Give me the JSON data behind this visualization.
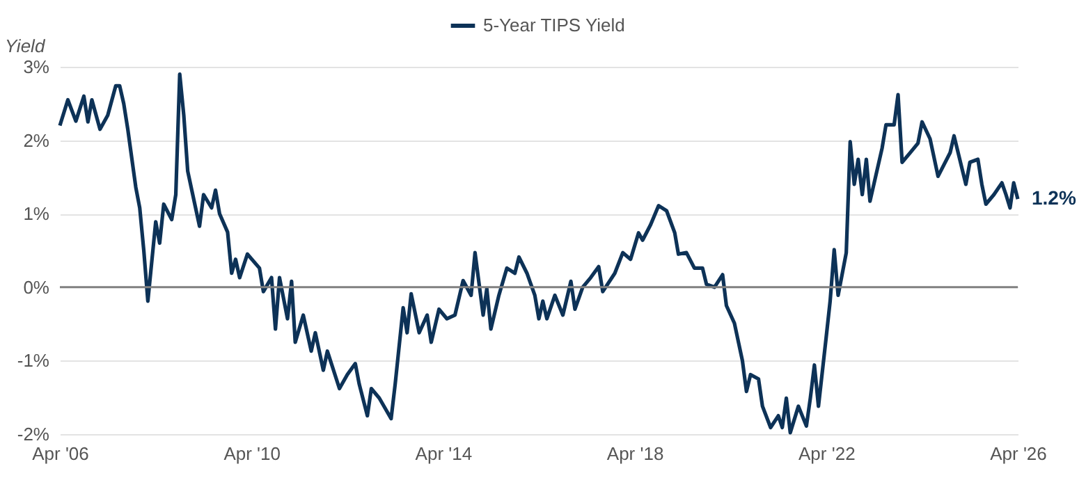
{
  "chart_data": {
    "type": "line",
    "ylabel": "Yield",
    "legend": "top",
    "grid": "y",
    "xlim": [
      "2006-04",
      "2026-04"
    ],
    "xticks": [
      {
        "value": "2006-04",
        "label": "Apr '06"
      },
      {
        "value": "2010-04",
        "label": "Apr '10"
      },
      {
        "value": "2014-04",
        "label": "Apr '14"
      },
      {
        "value": "2018-04",
        "label": "Apr '18"
      },
      {
        "value": "2022-04",
        "label": "Apr '22"
      },
      {
        "value": "2026-04",
        "label": "Apr '26"
      }
    ],
    "ylim": [
      -2,
      3
    ],
    "yticks": [
      {
        "value": -2,
        "label": "-2%"
      },
      {
        "value": -1,
        "label": "-1%"
      },
      {
        "value": 0,
        "label": "0%"
      },
      {
        "value": 1,
        "label": "1%"
      },
      {
        "value": 2,
        "label": "2%"
      },
      {
        "value": 3,
        "label": "3%"
      }
    ],
    "ref_lines": [
      {
        "axis": "y",
        "value": 0,
        "color": "#808080"
      }
    ],
    "annotations": [
      {
        "text": "1.2%",
        "x": "2026-04",
        "y": 1.2
      }
    ],
    "series": [
      {
        "name": "5-Year TIPS Yield",
        "color": "#0d3257",
        "x": [
          "2006-04",
          "2006-06",
          "2006-08",
          "2006-10",
          "2006-11",
          "2006-12",
          "2007-02",
          "2007-04",
          "2007-06",
          "2007-07",
          "2007-08",
          "2007-09",
          "2007-11",
          "2007-12",
          "2008-01",
          "2008-02",
          "2008-04",
          "2008-05",
          "2008-06",
          "2008-08",
          "2008-09",
          "2008-10",
          "2008-11",
          "2008-12",
          "2009-01",
          "2009-03",
          "2009-04",
          "2009-06",
          "2009-07",
          "2009-08",
          "2009-10",
          "2009-11",
          "2009-12",
          "2010-01",
          "2010-03",
          "2010-06",
          "2010-07",
          "2010-09",
          "2010-10",
          "2010-11",
          "2011-01",
          "2011-02",
          "2011-03",
          "2011-05",
          "2011-07",
          "2011-08",
          "2011-10",
          "2011-11",
          "2012-02",
          "2012-04",
          "2012-06",
          "2012-07",
          "2012-09",
          "2012-10",
          "2012-12",
          "2013-03",
          "2013-04",
          "2013-06",
          "2013-07",
          "2013-08",
          "2013-10",
          "2013-12",
          "2014-01",
          "2014-03",
          "2014-05",
          "2014-07",
          "2014-09",
          "2014-11",
          "2014-12",
          "2015-02",
          "2015-03",
          "2015-04",
          "2015-06",
          "2015-08",
          "2015-10",
          "2015-11",
          "2016-01",
          "2016-03",
          "2016-04",
          "2016-05",
          "2016-06",
          "2016-08",
          "2016-10",
          "2016-12",
          "2017-01",
          "2017-03",
          "2017-05",
          "2017-07",
          "2017-08",
          "2017-11",
          "2018-01",
          "2018-03",
          "2018-05",
          "2018-06",
          "2018-08",
          "2018-10",
          "2018-12",
          "2019-02",
          "2019-03",
          "2019-05",
          "2019-07",
          "2019-09",
          "2019-10",
          "2019-12",
          "2020-02",
          "2020-03",
          "2020-05",
          "2020-07",
          "2020-08",
          "2020-09",
          "2020-11",
          "2020-12",
          "2021-02",
          "2021-04",
          "2021-05",
          "2021-06",
          "2021-07",
          "2021-09",
          "2021-11",
          "2021-12",
          "2022-01",
          "2022-02",
          "2022-04",
          "2022-05",
          "2022-06",
          "2022-07",
          "2022-09",
          "2022-10",
          "2022-11",
          "2022-12",
          "2023-01",
          "2023-02",
          "2023-03",
          "2023-06",
          "2023-07",
          "2023-09",
          "2023-10",
          "2023-11",
          "2024-01",
          "2024-03",
          "2024-04",
          "2024-06",
          "2024-08",
          "2024-11",
          "2024-12",
          "2025-03",
          "2025-04",
          "2025-06",
          "2025-07",
          "2025-08",
          "2025-10",
          "2025-12",
          "2026-01",
          "2026-02",
          "2026-03",
          "2026-04"
        ],
        "values": [
          2.2,
          2.55,
          2.26,
          2.6,
          2.25,
          2.55,
          2.15,
          2.34,
          2.74,
          2.74,
          2.5,
          2.15,
          1.36,
          1.08,
          0.5,
          -0.19,
          0.89,
          0.6,
          1.13,
          0.92,
          1.26,
          2.9,
          2.34,
          1.58,
          1.32,
          0.83,
          1.26,
          1.08,
          1.32,
          1.0,
          0.75,
          0.19,
          0.38,
          0.13,
          0.45,
          0.26,
          -0.06,
          0.13,
          -0.57,
          0.13,
          -0.43,
          0.08,
          -0.75,
          -0.38,
          -0.87,
          -0.62,
          -1.13,
          -0.87,
          -1.38,
          -1.19,
          -1.04,
          -1.32,
          -1.75,
          -1.38,
          -1.51,
          -1.79,
          -1.32,
          -0.28,
          -0.62,
          -0.09,
          -0.62,
          -0.38,
          -0.75,
          -0.3,
          -0.43,
          -0.38,
          0.09,
          -0.11,
          0.47,
          -0.38,
          -0.02,
          -0.57,
          -0.11,
          0.26,
          0.19,
          0.41,
          0.19,
          -0.11,
          -0.43,
          -0.19,
          -0.43,
          -0.11,
          -0.38,
          0.08,
          -0.3,
          0.0,
          0.13,
          0.28,
          -0.06,
          0.19,
          0.47,
          0.38,
          0.74,
          0.64,
          0.85,
          1.11,
          1.04,
          0.74,
          0.45,
          0.47,
          0.26,
          0.26,
          0.04,
          0.0,
          0.17,
          -0.25,
          -0.49,
          -1.0,
          -1.42,
          -1.19,
          -1.25,
          -1.62,
          -1.91,
          -1.75,
          -1.91,
          -1.51,
          -1.98,
          -1.62,
          -1.89,
          -1.51,
          -1.06,
          -1.62,
          -0.68,
          -0.19,
          0.51,
          -0.11,
          0.47,
          1.98,
          1.4,
          1.74,
          1.26,
          1.74,
          1.17,
          1.89,
          2.21,
          2.21,
          2.62,
          1.7,
          1.83,
          1.96,
          2.25,
          2.02,
          1.51,
          1.83,
          2.06,
          1.4,
          1.7,
          1.74,
          1.4,
          1.13,
          1.26,
          1.42,
          1.26,
          1.08,
          1.42,
          1.2
        ]
      }
    ]
  }
}
